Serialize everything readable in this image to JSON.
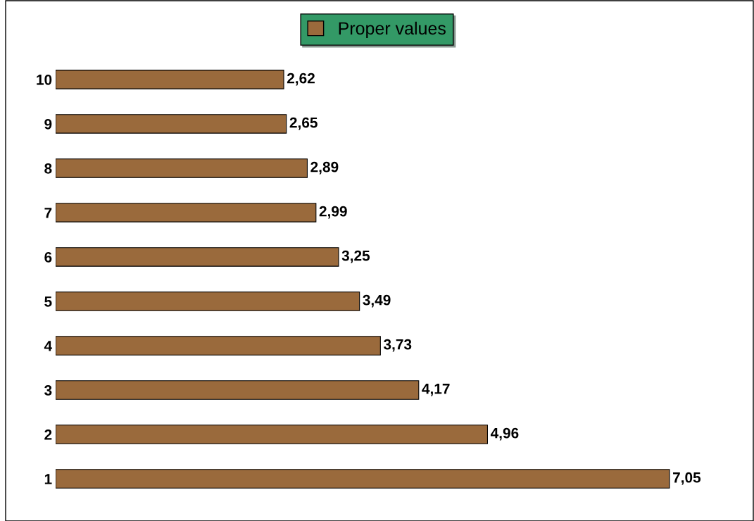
{
  "chart_data": {
    "type": "bar",
    "orientation": "horizontal",
    "categories": [
      "10",
      "9",
      "8",
      "7",
      "6",
      "5",
      "4",
      "3",
      "2",
      "1"
    ],
    "series": [
      {
        "name": "Proper values",
        "color": "#9a6a3c",
        "values": [
          2.62,
          2.65,
          2.89,
          2.99,
          3.25,
          3.49,
          3.73,
          4.17,
          4.96,
          7.05
        ],
        "value_labels": [
          "2,62",
          "2,65",
          "2,89",
          "2,99",
          "3,25",
          "3,49",
          "3,73",
          "4,17",
          "4,96",
          "7,05"
        ]
      }
    ],
    "legend": "top",
    "grid": false,
    "tick_labels": "y"
  }
}
